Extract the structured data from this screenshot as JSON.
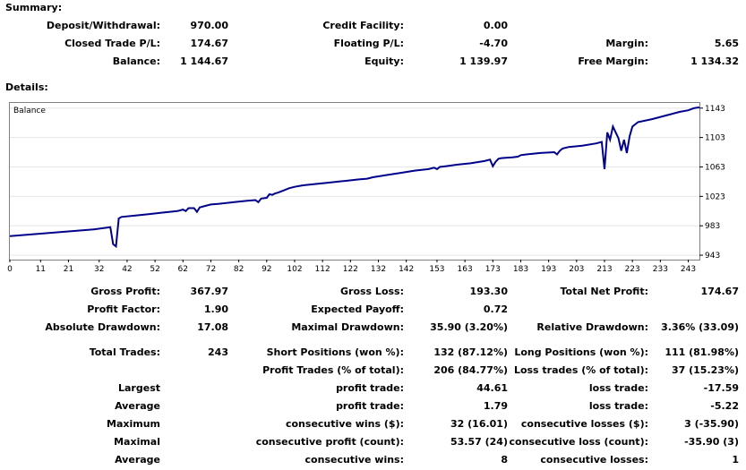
{
  "summary": {
    "title": "Summary:",
    "deposit_withdrawal": {
      "label": "Deposit/Withdrawal:",
      "value": "970.00"
    },
    "credit_facility": {
      "label": "Credit Facility:",
      "value": "0.00"
    },
    "closed_trade_pl": {
      "label": "Closed Trade P/L:",
      "value": "174.67"
    },
    "floating_pl": {
      "label": "Floating P/L:",
      "value": "-4.70"
    },
    "margin": {
      "label": "Margin:",
      "value": "5.65"
    },
    "balance": {
      "label": "Balance:",
      "value": "1 144.67"
    },
    "equity": {
      "label": "Equity:",
      "value": "1 139.97"
    },
    "free_margin": {
      "label": "Free Margin:",
      "value": "1 134.32"
    }
  },
  "details": {
    "title": "Details:",
    "rows": [
      [
        {
          "label": "Gross Profit:",
          "value": "367.97"
        },
        {
          "label": "Gross Loss:",
          "value": "193.30"
        },
        {
          "label": "Total Net Profit:",
          "value": "174.67"
        }
      ],
      [
        {
          "label": "Profit Factor:",
          "value": "1.90"
        },
        {
          "label": "Expected Payoff:",
          "value": "0.72"
        },
        {
          "label": "",
          "value": ""
        }
      ],
      [
        {
          "label": "Absolute Drawdown:",
          "value": "17.08"
        },
        {
          "label": "Maximal Drawdown:",
          "value": "35.90 (3.20%)"
        },
        {
          "label": "Relative Drawdown:",
          "value": "3.36% (33.09)"
        }
      ],
      [
        {
          "label": "Total Trades:",
          "value": "243"
        },
        {
          "label": "Short Positions (won %):",
          "value": "132 (87.12%)"
        },
        {
          "label": "Long Positions (won %):",
          "value": "111 (81.98%)"
        }
      ],
      [
        {
          "label": "",
          "value": ""
        },
        {
          "label": "Profit Trades (% of total):",
          "value": "206 (84.77%)"
        },
        {
          "label": "Loss trades (% of total):",
          "value": "37 (15.23%)"
        }
      ],
      [
        {
          "label": "Largest",
          "value": ""
        },
        {
          "label": "profit trade:",
          "value": "44.61"
        },
        {
          "label": "loss trade:",
          "value": "-17.59"
        }
      ],
      [
        {
          "label": "Average",
          "value": ""
        },
        {
          "label": "profit trade:",
          "value": "1.79"
        },
        {
          "label": "loss trade:",
          "value": "-5.22"
        }
      ],
      [
        {
          "label": "Maximum",
          "value": ""
        },
        {
          "label": "consecutive wins ($):",
          "value": "32 (16.01)"
        },
        {
          "label": "consecutive losses ($):",
          "value": "3 (-35.90)"
        }
      ],
      [
        {
          "label": "Maximal",
          "value": ""
        },
        {
          "label": "consecutive profit (count):",
          "value": "53.57 (24)"
        },
        {
          "label": "consecutive loss (count):",
          "value": "-35.90 (3)"
        }
      ],
      [
        {
          "label": "Average",
          "value": ""
        },
        {
          "label": "consecutive wins:",
          "value": "8"
        },
        {
          "label": "consecutive losses:",
          "value": "1"
        }
      ]
    ]
  },
  "chart_data": {
    "type": "line",
    "legend": "Balance",
    "line_color": "#00008b",
    "x_ticks": [
      "0",
      "11",
      "21",
      "32",
      "42",
      "52",
      "62",
      "72",
      "82",
      "92",
      "102",
      "112",
      "122",
      "132",
      "142",
      "153",
      "163",
      "173",
      "183",
      "193",
      "203",
      "213",
      "223",
      "233",
      "243"
    ],
    "y_ticks": [
      "1143",
      "1103",
      "1063",
      "1023",
      "983",
      "943"
    ],
    "xlim": [
      0,
      247
    ],
    "ylim": [
      937,
      1150
    ],
    "series": [
      {
        "x": [
          0,
          10,
          20,
          30,
          36,
          37,
          38,
          39,
          40,
          45,
          50,
          55,
          60,
          62,
          63,
          64,
          66,
          67,
          68,
          70,
          72,
          75,
          80,
          85,
          88,
          89,
          90,
          92,
          93,
          94,
          95,
          96,
          98,
          100,
          102,
          105,
          110,
          115,
          120,
          125,
          128,
          130,
          135,
          140,
          145,
          150,
          152,
          153,
          154,
          156,
          160,
          165,
          170,
          172,
          173,
          174,
          175,
          176,
          180,
          182,
          183,
          185,
          190,
          195,
          196,
          197,
          198,
          200,
          205,
          210,
          212,
          213,
          214,
          215,
          216,
          217,
          218,
          219,
          220,
          221,
          222,
          223,
          225,
          230,
          235,
          240,
          243,
          245,
          247
        ],
        "y": [
          969,
          972,
          975,
          978,
          981,
          958,
          955,
          993,
          995,
          997,
          999,
          1001,
          1003,
          1005,
          1003,
          1007,
          1007,
          1002,
          1008,
          1010,
          1012,
          1013,
          1015,
          1017,
          1018,
          1015,
          1020,
          1021,
          1026,
          1025,
          1027,
          1028,
          1031,
          1034,
          1036,
          1038,
          1040,
          1042,
          1044,
          1046,
          1047,
          1049,
          1052,
          1055,
          1058,
          1060,
          1062,
          1060,
          1063,
          1064,
          1066,
          1068,
          1071,
          1073,
          1064,
          1070,
          1074,
          1075,
          1076,
          1077,
          1079,
          1080,
          1082,
          1083,
          1080,
          1085,
          1088,
          1090,
          1092,
          1095,
          1097,
          1060,
          1110,
          1100,
          1118,
          1110,
          1102,
          1085,
          1100,
          1082,
          1105,
          1118,
          1124,
          1128,
          1133,
          1138,
          1140,
          1143,
          1144
        ]
      }
    ]
  }
}
